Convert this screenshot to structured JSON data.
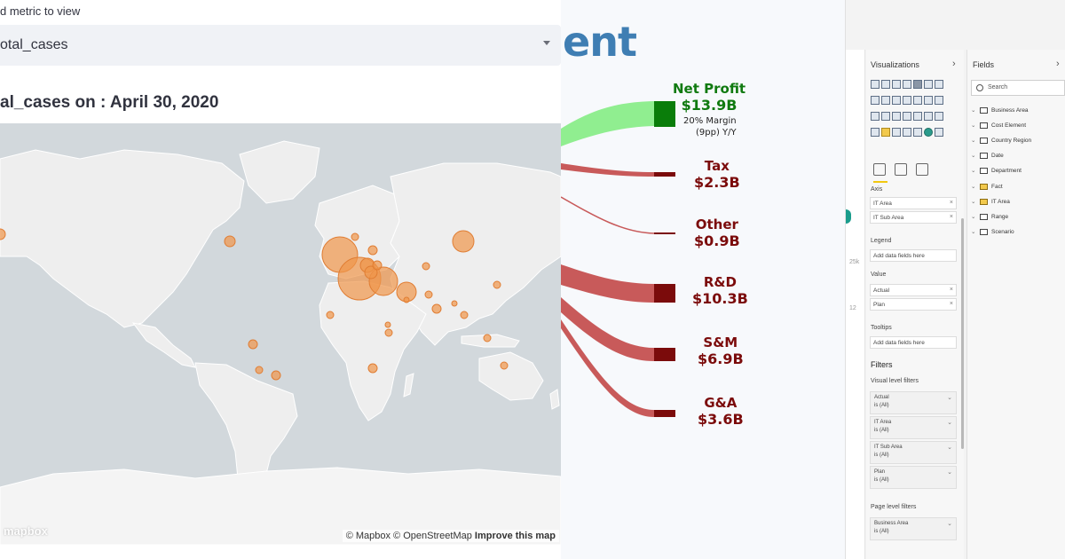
{
  "map_panel": {
    "metric_label": "d metric to view",
    "selected_metric": "otal_cases",
    "map_title": "al_cases on : April 30, 2020",
    "attribution_prefix": "© Mapbox © OpenStreetMap",
    "attribution_link": "Improve this map",
    "logo": "mapbox",
    "bubble_color": "#f0954a"
  },
  "sankey_panel": {
    "title_fragment": "ent",
    "title_color": "#3f7eb3",
    "nodes": [
      {
        "id": "net-profit",
        "label": "Net Profit",
        "value": "$13.9B",
        "color": "#107a10",
        "sub1": "20% Margin",
        "sub2": "(9pp) Y/Y"
      },
      {
        "id": "tax",
        "label": "Tax",
        "value": "$2.3B",
        "color": "#7b0b0b"
      },
      {
        "id": "other",
        "label": "Other",
        "value": "$0.9B",
        "color": "#7b0b0b"
      },
      {
        "id": "rd",
        "label": "R&D",
        "value": "$10.3B",
        "color": "#7b0b0b"
      },
      {
        "id": "sm",
        "label": "S&M",
        "value": "$6.9B",
        "color": "#7b0b0b"
      },
      {
        "id": "ga",
        "label": "G&A",
        "value": "$3.6B",
        "color": "#7b0b0b"
      }
    ]
  },
  "powerbi_panel": {
    "visualizations_title": "Visualizations",
    "fields_title": "Fields",
    "search_placeholder": "Search",
    "canvas_labels": [
      "25k",
      "12"
    ],
    "wells": {
      "axis_label": "Axis",
      "axis_items": [
        "IT Area",
        "IT Sub Area"
      ],
      "legend_label": "Legend",
      "legend_placeholder": "Add data fields here",
      "value_label": "Value",
      "value_items": [
        "Actual",
        "Plan"
      ],
      "tooltips_label": "Tooltips",
      "tooltips_placeholder": "Add data fields here"
    },
    "filters": {
      "title": "Filters",
      "visual_level": "Visual level filters",
      "cards": [
        {
          "name": "Actual",
          "state": "is (All)"
        },
        {
          "name": "IT Area",
          "state": "is (All)"
        },
        {
          "name": "IT Sub Area",
          "state": "is (All)"
        },
        {
          "name": "Plan",
          "state": "is (All)"
        }
      ],
      "page_level": "Page level filters",
      "page_cards": [
        {
          "name": "Business Area",
          "state": "is (All)"
        }
      ]
    },
    "fields": [
      "Business Area",
      "Cost Element",
      "Country Region",
      "Date",
      "Department",
      "Fact",
      "IT Area",
      "Range",
      "Scenario"
    ]
  }
}
